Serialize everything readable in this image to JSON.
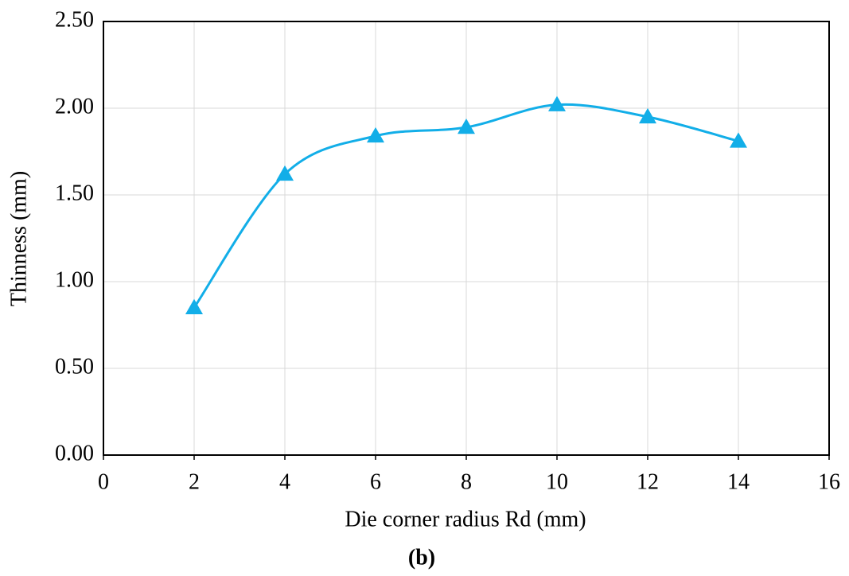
{
  "chart_data": {
    "type": "line",
    "caption": "(b)",
    "x_label": "Die corner radius Rd (mm)",
    "y_label": "Thinness (mm)",
    "x": [
      2,
      4,
      6,
      8,
      10,
      12,
      14
    ],
    "series": [
      {
        "name": "Thinness",
        "color": "#12aee8",
        "marker": "triangle",
        "values": [
          0.85,
          1.62,
          1.84,
          1.89,
          2.02,
          1.95,
          1.81
        ]
      }
    ],
    "xlim": [
      0,
      16
    ],
    "xticks": [
      0,
      2,
      4,
      6,
      8,
      10,
      12,
      14,
      16
    ],
    "ylim": [
      0,
      2.5
    ],
    "yticks": [
      {
        "value": 0,
        "label": "0.00"
      },
      {
        "value": 0.5,
        "label": "0.50"
      },
      {
        "value": 1,
        "label": "1.00"
      },
      {
        "value": 1.5,
        "label": "1.50"
      },
      {
        "value": 2,
        "label": "2.00"
      },
      {
        "value": 2.5,
        "label": "2.50"
      }
    ],
    "grid": true,
    "smooth": true
  }
}
